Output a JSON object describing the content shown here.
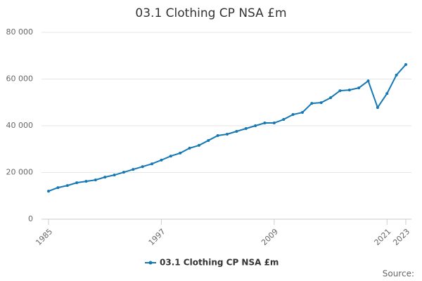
{
  "chart_data": {
    "type": "line",
    "title": "03.1 Clothing CP NSA £m",
    "x": [
      1985,
      1986,
      1987,
      1988,
      1989,
      1990,
      1991,
      1992,
      1993,
      1994,
      1995,
      1996,
      1997,
      1998,
      1999,
      2000,
      2001,
      2002,
      2003,
      2004,
      2005,
      2006,
      2007,
      2008,
      2009,
      2010,
      2011,
      2012,
      2013,
      2014,
      2015,
      2016,
      2017,
      2018,
      2019,
      2020,
      2021,
      2022,
      2023
    ],
    "series": [
      {
        "name": "03.1 Clothing CP NSA £m",
        "color": "#1478b4",
        "values": [
          12000,
          13500,
          14400,
          15600,
          16200,
          16800,
          18000,
          18900,
          20100,
          21300,
          22500,
          23700,
          25300,
          27000,
          28300,
          30400,
          31600,
          33700,
          35800,
          36400,
          37600,
          38800,
          40000,
          41200,
          41200,
          42700,
          44800,
          45700,
          49600,
          49900,
          52000,
          55000,
          55300,
          56200,
          59200,
          47800,
          53800,
          61700,
          66200
        ]
      }
    ],
    "xlim": [
      1985,
      2023
    ],
    "xticks": [
      1985,
      1997,
      2009,
      2021,
      2023
    ],
    "ylim": [
      0,
      80000
    ],
    "yticks": [
      0,
      {
        "value": 20000,
        "label": "20 000"
      },
      {
        "value": 40000,
        "label": "40 000"
      },
      {
        "value": 60000,
        "label": "60 000"
      },
      {
        "value": 80000,
        "label": "80 000"
      }
    ],
    "grid": true,
    "legend": "bottom",
    "source": "Source:"
  }
}
